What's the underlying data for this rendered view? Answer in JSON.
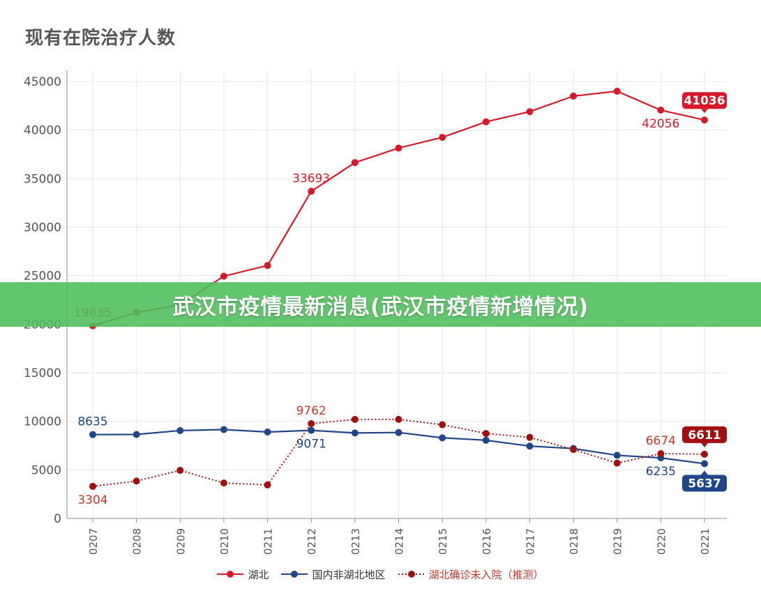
{
  "page": {
    "title": "现有在院治疗人数",
    "banner": "武汉市疫情最新消息(武汉市疫情新增情况)"
  },
  "chart_data": {
    "type": "line",
    "categories": [
      "0207",
      "0208",
      "0209",
      "0210",
      "0211",
      "0212",
      "0213",
      "0214",
      "0215",
      "0216",
      "0217",
      "0218",
      "0219",
      "0220",
      "0221"
    ],
    "ylim": [
      0,
      45000
    ],
    "yticks": [
      0,
      5000,
      10000,
      15000,
      20000,
      25000,
      30000,
      35000,
      40000,
      45000
    ],
    "grid": true,
    "legend_position": "bottom",
    "series": [
      {
        "name": "湖北",
        "color": "#d7182a",
        "style": "solid",
        "values": [
          19835,
          21200,
          22000,
          24950,
          26050,
          33693,
          36650,
          38150,
          39250,
          40850,
          41900,
          43500,
          44000,
          42056,
          41036
        ],
        "labels": [
          {
            "index": 0,
            "text": "19835",
            "pos": "above",
            "color": "#d7182a"
          },
          {
            "index": 5,
            "text": "33693",
            "pos": "above",
            "color": "#d7182a"
          },
          {
            "index": 13,
            "text": "42056",
            "pos": "below",
            "color": "#d7182a"
          },
          {
            "index": 14,
            "text": "41036",
            "pos": "badge",
            "color": "#d7182a"
          }
        ]
      },
      {
        "name": "国内非湖北地区",
        "color": "#1f4688",
        "style": "solid",
        "values": [
          8635,
          8650,
          9050,
          9150,
          8900,
          9071,
          8800,
          8850,
          8300,
          8050,
          7450,
          7200,
          6500,
          6235,
          5637
        ],
        "labels": [
          {
            "index": 0,
            "text": "8635",
            "pos": "above",
            "color": "#1f4688"
          },
          {
            "index": 5,
            "text": "9071",
            "pos": "below",
            "color": "#1f4688"
          },
          {
            "index": 13,
            "text": "6235",
            "pos": "below",
            "color": "#1f4688"
          },
          {
            "index": 14,
            "text": "5637",
            "pos": "badge-below",
            "color": "#1f4688"
          }
        ]
      },
      {
        "name": "湖北确诊未入院（推测）",
        "color": "#a01010",
        "style": "dotted",
        "values": [
          3304,
          3850,
          4950,
          3650,
          3450,
          9762,
          10200,
          10200,
          9650,
          8750,
          8350,
          7100,
          5700,
          6674,
          6611
        ],
        "labels": [
          {
            "index": 0,
            "text": "3304",
            "pos": "below",
            "color": "#c0392b"
          },
          {
            "index": 5,
            "text": "9762",
            "pos": "above",
            "color": "#c0392b"
          },
          {
            "index": 13,
            "text": "6674",
            "pos": "above",
            "color": "#c0392b"
          },
          {
            "index": 14,
            "text": "6611",
            "pos": "badge",
            "color": "#a01010"
          }
        ]
      }
    ]
  }
}
